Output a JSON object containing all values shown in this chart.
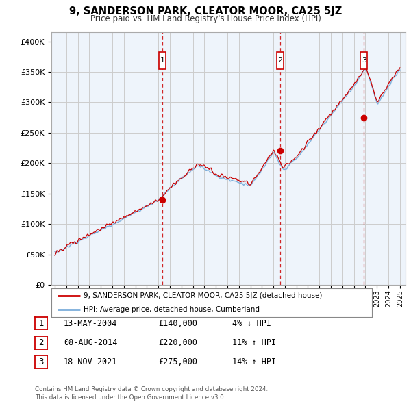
{
  "title": "9, SANDERSON PARK, CLEATOR MOOR, CA25 5JZ",
  "subtitle": "Price paid vs. HM Land Registry's House Price Index (HPI)",
  "ylabel_ticks": [
    "£0",
    "£50K",
    "£100K",
    "£150K",
    "£200K",
    "£250K",
    "£300K",
    "£350K",
    "£400K"
  ],
  "ytick_values": [
    0,
    50000,
    100000,
    150000,
    200000,
    250000,
    300000,
    350000,
    400000
  ],
  "ylim": [
    0,
    415000
  ],
  "xlim_start": 1994.7,
  "xlim_end": 2025.5,
  "sale_dates": [
    2004.37,
    2014.6,
    2021.88
  ],
  "sale_prices": [
    140000,
    220000,
    275000
  ],
  "sale_labels": [
    "1",
    "2",
    "3"
  ],
  "legend_red_label": "9, SANDERSON PARK, CLEATOR MOOR, CA25 5JZ (detached house)",
  "legend_blue_label": "HPI: Average price, detached house, Cumberland",
  "table_rows": [
    {
      "num": "1",
      "date": "13-MAY-2004",
      "price": "£140,000",
      "pct": "4%",
      "dir": "↓",
      "hpi": "HPI"
    },
    {
      "num": "2",
      "date": "08-AUG-2014",
      "price": "£220,000",
      "pct": "11%",
      "dir": "↑",
      "hpi": "HPI"
    },
    {
      "num": "3",
      "date": "18-NOV-2021",
      "price": "£275,000",
      "pct": "14%",
      "dir": "↑",
      "hpi": "HPI"
    }
  ],
  "footnote": "Contains HM Land Registry data © Crown copyright and database right 2024.\nThis data is licensed under the Open Government Licence v3.0.",
  "red_color": "#cc0000",
  "blue_color": "#7aaddb",
  "fill_color": "#d6e8f5",
  "vline_color": "#cc0000",
  "grid_color": "#cccccc",
  "background_color": "#ffffff",
  "label_box_color": "#cc0000"
}
